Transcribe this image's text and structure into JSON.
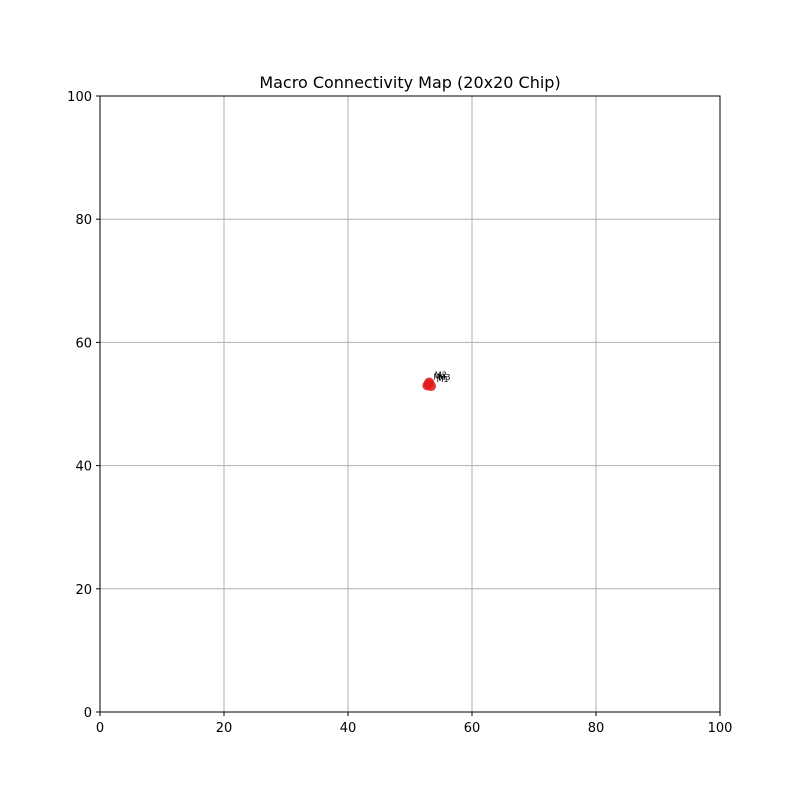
{
  "chart_data": {
    "type": "scatter",
    "title": "Macro Connectivity Map (20x20 Chip)",
    "xlabel": "",
    "ylabel": "",
    "xlim": [
      0,
      100
    ],
    "ylim": [
      0,
      100
    ],
    "xticks": [
      0,
      20,
      40,
      60,
      80,
      100
    ],
    "yticks": [
      0,
      20,
      40,
      60,
      80,
      100
    ],
    "grid": true,
    "colors": {
      "macro": "#e41a1c",
      "grid": "#b0b0b0",
      "axes": "#000000",
      "label": "#000000"
    },
    "points": [
      {
        "x": 52.8,
        "y": 53.0
      },
      {
        "x": 53.1,
        "y": 53.5
      },
      {
        "x": 53.4,
        "y": 52.9
      },
      {
        "x": 53.0,
        "y": 53.2
      }
    ],
    "annotations": [
      {
        "text": "M0",
        "x": 53.8,
        "y": 54.0
      },
      {
        "text": "M1",
        "x": 54.3,
        "y": 53.6
      },
      {
        "text": "M2",
        "x": 54.0,
        "y": 54.3
      },
      {
        "text": "M3",
        "x": 54.6,
        "y": 53.9
      }
    ]
  }
}
